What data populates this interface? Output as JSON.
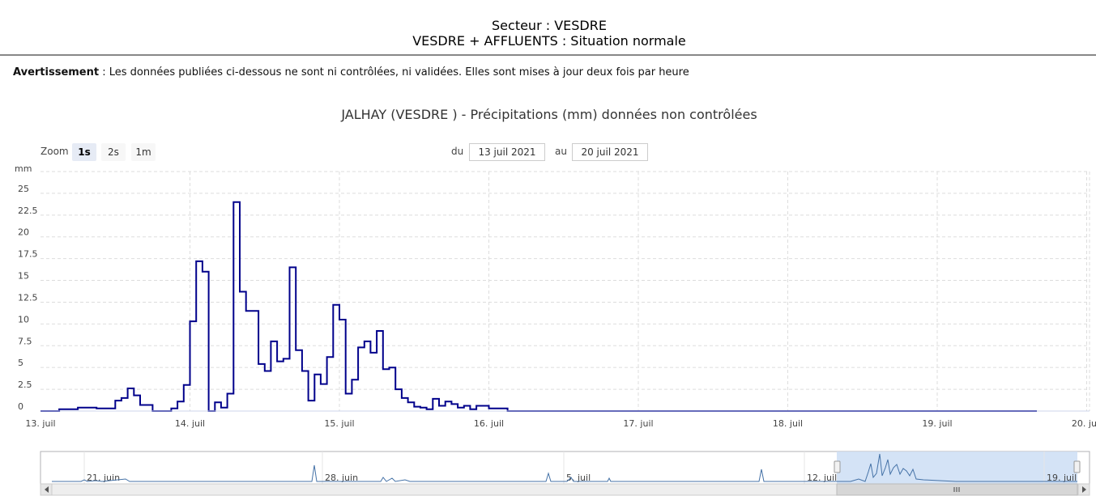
{
  "header": {
    "sector_line": "Secteur : VESDRE",
    "status_line": "VESDRE + AFFLUENTS : Situation normale"
  },
  "warning": {
    "label": "Avertissement",
    "text": " : Les données publiées ci-dessous ne sont ni contrôlées, ni validées. Elles sont mises à jour deux fois par heure"
  },
  "toolbar": {
    "zoom_label": "Zoom",
    "zoom_buttons": [
      "1s",
      "2s",
      "1m"
    ],
    "zoom_active": "1s",
    "from_label": "du",
    "from_value": "13 juil 2021",
    "to_label": "au",
    "to_value": "20 juil 2021"
  },
  "colors": {
    "series": "#00008B",
    "navigator_series": "#4572A7",
    "navigator_mask": "#cfe0f5",
    "grid": "#dddddd"
  },
  "chart_data": {
    "type": "line",
    "step": true,
    "title": "JALHAY (VESDRE ) - Précipitations (mm) données non contrôlées",
    "ylabel": "mm",
    "xlabel": "",
    "ylim": [
      0,
      27.5
    ],
    "yticks": [
      "0",
      "2.5",
      "5",
      "7.5",
      "10",
      "12.5",
      "15",
      "17.5",
      "20",
      "22.5",
      "25"
    ],
    "x_tick_labels": [
      "13. juil",
      "14. juil",
      "15. juil",
      "16. juil",
      "17. juil",
      "18. juil",
      "19. juil",
      "20. juil"
    ],
    "grid": true,
    "series": [
      {
        "x": [
          "13/07 00:00",
          "13/07 03:00",
          "13/07 06:00",
          "13/07 09:00",
          "13/07 12:00",
          "13/07 13:00",
          "13/07 14:00",
          "13/07 15:00",
          "13/07 16:00",
          "13/07 18:00",
          "13/07 21:00",
          "13/07 22:00",
          "13/07 23:00",
          "14/07 00:00",
          "14/07 01:00",
          "14/07 02:00",
          "14/07 03:00",
          "14/07 04:00",
          "14/07 05:00",
          "14/07 06:00",
          "14/07 07:00",
          "14/07 08:00",
          "14/07 09:00",
          "14/07 10:00",
          "14/07 11:00",
          "14/07 12:00",
          "14/07 13:00",
          "14/07 14:00",
          "14/07 15:00",
          "14/07 16:00",
          "14/07 17:00",
          "14/07 18:00",
          "14/07 19:00",
          "14/07 20:00",
          "14/07 21:00",
          "14/07 22:00",
          "14/07 23:00",
          "15/07 00:00",
          "15/07 01:00",
          "15/07 02:00",
          "15/07 03:00",
          "15/07 04:00",
          "15/07 05:00",
          "15/07 06:00",
          "15/07 07:00",
          "15/07 08:00",
          "15/07 09:00",
          "15/07 10:00",
          "15/07 11:00",
          "15/07 12:00",
          "15/07 13:00",
          "15/07 14:00",
          "15/07 15:00",
          "15/07 16:00",
          "15/07 17:00",
          "15/07 18:00",
          "15/07 19:00",
          "15/07 20:00",
          "15/07 21:00",
          "15/07 22:00",
          "16/07 00:00",
          "16/07 03:00",
          "16/07 06:00",
          "16/07 09:00",
          "16/07 12:00",
          "19/07 16:00"
        ],
        "values": [
          0,
          0.2,
          0.4,
          0.3,
          1.2,
          1.5,
          2.6,
          1.8,
          0.7,
          0,
          0.3,
          1.1,
          3.0,
          10.3,
          17.2,
          16.0,
          0,
          1.0,
          0.4,
          2.0,
          24.0,
          13.7,
          11.5,
          11.5,
          5.4,
          4.6,
          8.0,
          5.7,
          6.0,
          16.5,
          7.0,
          4.6,
          1.2,
          4.2,
          3.1,
          6.2,
          12.2,
          10.5,
          2.0,
          3.6,
          7.3,
          8.0,
          6.7,
          9.2,
          4.8,
          5.0,
          2.5,
          1.5,
          1.0,
          0.5,
          0.4,
          0.2,
          1.4,
          0.6,
          1.1,
          0.8,
          0.4,
          0.6,
          0.2,
          0.6,
          0.3,
          0,
          0,
          0,
          0,
          0
        ]
      }
    ],
    "navigator": {
      "x_tick_labels": [
        "21. juin",
        "28. juin",
        "5. juil",
        "12. juil",
        "19. juil"
      ]
    }
  }
}
